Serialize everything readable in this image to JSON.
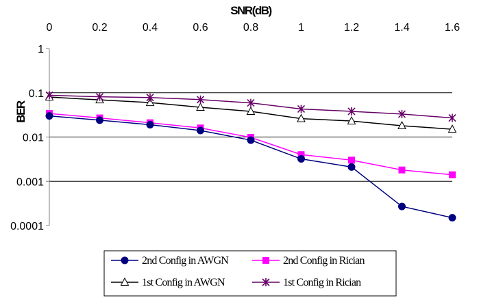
{
  "chart_data": {
    "type": "line",
    "title": "",
    "xlabel": "SNR(dB)",
    "ylabel": "BER",
    "x": [
      0,
      0.2,
      0.4,
      0.6,
      0.8,
      1,
      1.2,
      1.4,
      1.6
    ],
    "x_tick_labels": [
      "0",
      "0.2",
      "0.4",
      "0.6",
      "0.8",
      "1",
      "1.2",
      "1.4",
      "1.6"
    ],
    "xlim": [
      0,
      1.6
    ],
    "x_axis_position": "top",
    "y_scale": "log",
    "ylim": [
      0.0001,
      1
    ],
    "y_tick_values": [
      1,
      0.1,
      0.01,
      0.001,
      0.0001
    ],
    "y_tick_labels": [
      "1",
      "0.1",
      "0.01",
      "0.001",
      "0.0001"
    ],
    "grid": "horizontal major gridlines",
    "legend_position": "bottom",
    "series": [
      {
        "name": "2nd Config in AWGN",
        "marker": "circle",
        "color": "#000080",
        "values": [
          0.03,
          0.024,
          0.019,
          0.014,
          0.0085,
          0.0032,
          0.0021,
          0.00027,
          0.00015
        ]
      },
      {
        "name": "2nd Config in Rician",
        "marker": "square",
        "color": "#FF00FF",
        "values": [
          0.034,
          0.027,
          0.021,
          0.016,
          0.0098,
          0.004,
          0.003,
          0.0018,
          0.0014
        ]
      },
      {
        "name": "1st Config in AWGN",
        "marker": "triangle",
        "color": "#000000",
        "values": [
          0.08,
          0.069,
          0.06,
          0.047,
          0.038,
          0.026,
          0.023,
          0.018,
          0.015
        ]
      },
      {
        "name": "1st Config in Rician",
        "marker": "star",
        "color": "#660066",
        "values": [
          0.088,
          0.081,
          0.078,
          0.07,
          0.059,
          0.043,
          0.038,
          0.033,
          0.027
        ]
      }
    ]
  }
}
